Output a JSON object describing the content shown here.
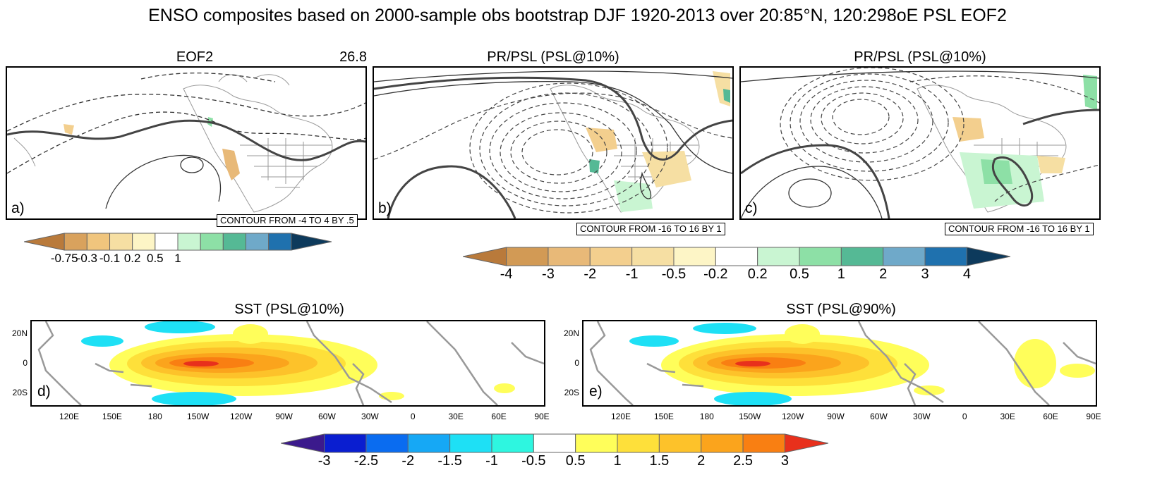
{
  "title": "ENSO composites based on 2000-sample obs bootstrap DJF 1920-2013 over 20:85°N, 120:298oE PSL EOF2",
  "panels": {
    "a": {
      "title": "EOF2",
      "value": "26.8",
      "letter": "a)",
      "contour": "CONTOUR FROM -4 TO 4 BY .5"
    },
    "b": {
      "title": "PR/PSL (PSL@10%)",
      "letter": "b)",
      "contour": "CONTOUR FROM -16 TO 16 BY 1"
    },
    "c": {
      "title": "PR/PSL (PSL@10%)",
      "letter": "c)",
      "contour": "CONTOUR FROM -16 TO 16 BY 1"
    },
    "d": {
      "title": "SST (PSL@10%)",
      "letter": "d)"
    },
    "e": {
      "title": "SST (PSL@90%)",
      "letter": "e)"
    }
  },
  "chart_data": [
    {
      "type": "heatmap",
      "title": "EOF2",
      "annotation": "26.8",
      "contour_levels": {
        "from": -4,
        "to": 4,
        "by": 0.5
      }
    },
    {
      "type": "heatmap",
      "title": "PR/PSL (PSL@10%)",
      "contour_levels": {
        "from": -16,
        "to": 16,
        "by": 1
      }
    },
    {
      "type": "heatmap",
      "title": "PR/PSL (PSL@10%)",
      "contour_levels": {
        "from": -16,
        "to": 16,
        "by": 1
      }
    },
    {
      "type": "heatmap",
      "title": "SST (PSL@10%)",
      "x_ticks": [
        "120E",
        "150E",
        "180",
        "150W",
        "120W",
        "90W",
        "60W",
        "30W",
        "0",
        "30E",
        "60E",
        "90E"
      ],
      "y_ticks": [
        "20N",
        "0",
        "20S"
      ]
    },
    {
      "type": "heatmap",
      "title": "SST (PSL@90%)",
      "x_ticks": [
        "120E",
        "150E",
        "180",
        "150W",
        "120W",
        "90W",
        "60W",
        "30W",
        "0",
        "30E",
        "60E",
        "90E"
      ],
      "y_ticks": [
        "20N",
        "0",
        "20S"
      ]
    }
  ],
  "colorbars": {
    "eof": {
      "labels": [
        "-0.75",
        "-0.3",
        "-0.1",
        "0.2",
        "0.5",
        "1"
      ],
      "colors": [
        "#b97a3b",
        "#d9a25d",
        "#f0c57d",
        "#f6dfa3",
        "#fdf5c6",
        "#ffffff",
        "#c9f5d2",
        "#8de0a6",
        "#55b995",
        "#6fa9c9",
        "#1f71ae",
        "#0d3a5c"
      ]
    },
    "pr": {
      "labels": [
        "-4",
        "-3",
        "-2",
        "-1",
        "-0.5",
        "-0.2",
        "0.2",
        "0.5",
        "1",
        "2",
        "3",
        "4"
      ],
      "colors": [
        "#b97a3b",
        "#d29a55",
        "#e8b978",
        "#f3cf8e",
        "#f6dfa3",
        "#fdf5c6",
        "#ffffff",
        "#c9f5d2",
        "#8de0a6",
        "#55b995",
        "#6fa9c9",
        "#1f71ae",
        "#0d3a5c"
      ]
    },
    "sst": {
      "labels": [
        "-3",
        "-2.5",
        "-2",
        "-1.5",
        "-1",
        "-0.5",
        "0.5",
        "1",
        "1.5",
        "2",
        "2.5",
        "3"
      ],
      "colors": [
        "#3b1a8c",
        "#0a1ed0",
        "#0a6cf0",
        "#16a8f5",
        "#1ee0f5",
        "#2ef6e0",
        "#ffffff",
        "#fffe5a",
        "#fee03a",
        "#fdc22a",
        "#fba41c",
        "#f97f12",
        "#e8301c"
      ]
    }
  }
}
